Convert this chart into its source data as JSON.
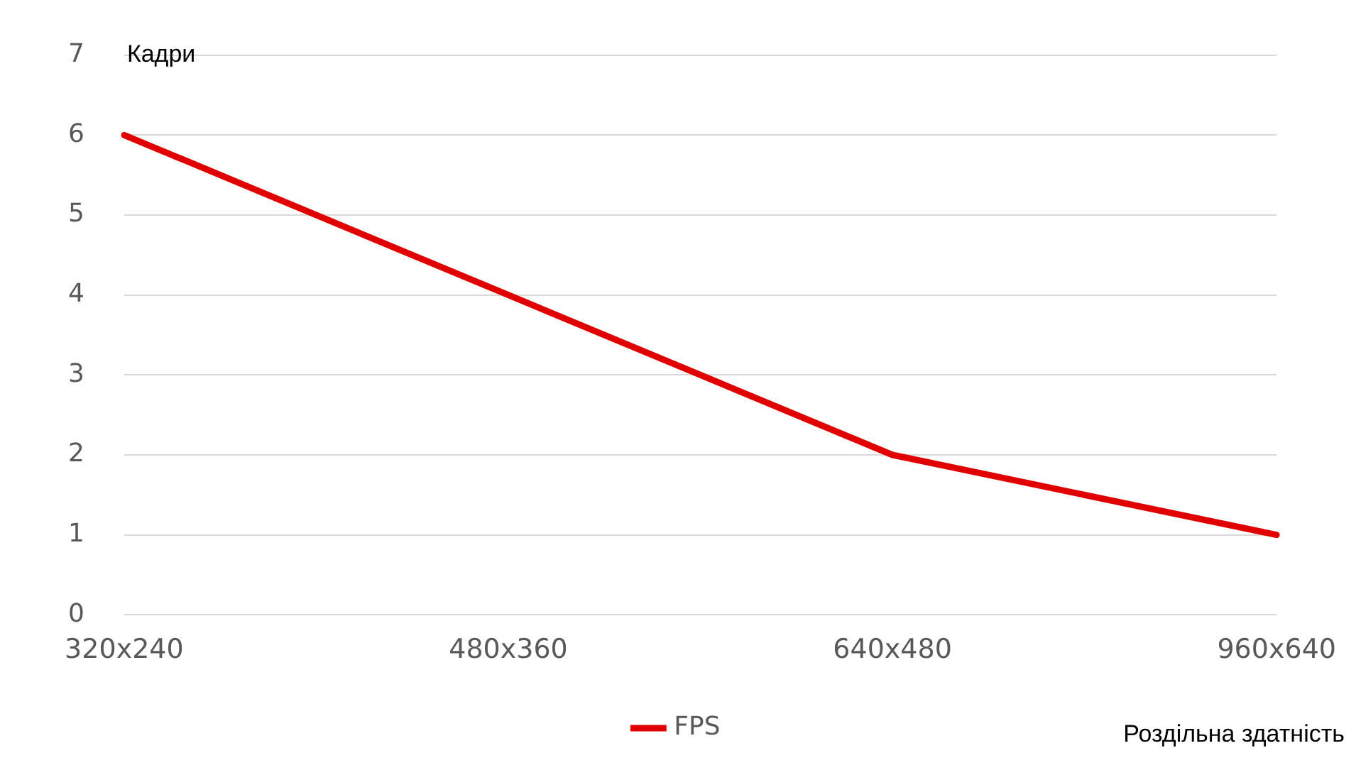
{
  "chart_data": {
    "type": "line",
    "ylabel": "Кадри",
    "xlabel": "Роздільна здатність",
    "categories": [
      "320x240",
      "480x360",
      "640x480",
      "960x640"
    ],
    "series": [
      {
        "name": "FPS",
        "color": "#e00000",
        "values": [
          6,
          4,
          2,
          1
        ]
      }
    ],
    "ylim": [
      0,
      7
    ],
    "yticks": [
      0,
      1,
      2,
      3,
      4,
      5,
      6,
      7
    ],
    "grid": "y",
    "legend": "bottom",
    "marker": "none",
    "line_style": "solid"
  }
}
